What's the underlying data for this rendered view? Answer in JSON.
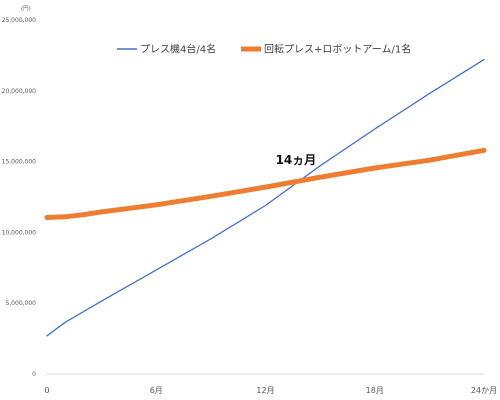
{
  "chart_data": {
    "type": "line",
    "unit_label": "(円)",
    "x_ticks": [
      {
        "x": 0,
        "label": "0"
      },
      {
        "x": 6,
        "label": "6月"
      },
      {
        "x": 12,
        "label": "12月"
      },
      {
        "x": 18,
        "label": "18月"
      },
      {
        "x": 24,
        "label": "24か月"
      }
    ],
    "y_ticks": [
      {
        "y": 0,
        "label": "0"
      },
      {
        "y": 5000000,
        "label": "5,000,000"
      },
      {
        "y": 10000000,
        "label": "10,000,000"
      },
      {
        "y": 15000000,
        "label": "15,000,000"
      },
      {
        "y": 20000000,
        "label": "20,000,000"
      },
      {
        "y": 25000000,
        "label": "25,000,000"
      }
    ],
    "xlim": [
      0,
      24
    ],
    "ylim": [
      0,
      25000000
    ],
    "grid": false,
    "legend_position": "top",
    "series": [
      {
        "name": "プレス機4台/4名",
        "color": "#4472c4",
        "x": [
          0,
          1,
          3,
          6,
          9,
          12,
          15,
          18,
          21,
          24
        ],
        "y": [
          2700000,
          3650000,
          5150000,
          7350000,
          9550000,
          11900000,
          14700000,
          17300000,
          19800000,
          22200000
        ]
      },
      {
        "name": "回転プレス+ロボットアーム/1名",
        "color": "#ed7d31",
        "x": [
          0,
          1,
          2,
          3,
          6,
          9,
          12,
          15,
          18,
          21,
          24
        ],
        "y": [
          11050000,
          11100000,
          11250000,
          11450000,
          11950000,
          12550000,
          13200000,
          13900000,
          14550000,
          15100000,
          15800000
        ]
      }
    ],
    "annotations": [
      {
        "text": "14ヵ月",
        "x": 14,
        "y": 15100000
      }
    ]
  }
}
